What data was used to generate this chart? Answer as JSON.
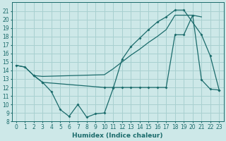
{
  "xlabel": "Humidex (Indice chaleur)",
  "bg_color": "#cde8e8",
  "grid_color": "#a8d0d0",
  "line_color": "#1a6b6b",
  "ylim": [
    8,
    22
  ],
  "xlim": [
    -0.5,
    23.5
  ],
  "yticks": [
    8,
    9,
    10,
    11,
    12,
    13,
    14,
    15,
    16,
    17,
    18,
    19,
    20,
    21
  ],
  "xticks": [
    0,
    1,
    2,
    3,
    4,
    5,
    6,
    7,
    8,
    9,
    10,
    11,
    12,
    13,
    14,
    15,
    16,
    17,
    18,
    19,
    20,
    21,
    22,
    23
  ],
  "line1_x": [
    0,
    1,
    2,
    3,
    10,
    11,
    12,
    13,
    14,
    15,
    16,
    17,
    18,
    20,
    21
  ],
  "line1_y": [
    14.6,
    14.4,
    13.4,
    13.3,
    13.5,
    14.2,
    15.0,
    15.8,
    16.5,
    17.3,
    18.0,
    18.8,
    20.5,
    20.5,
    20.3
  ],
  "line2_x": [
    0,
    1,
    2,
    3,
    4,
    5,
    6,
    7,
    8,
    9,
    10,
    11,
    12,
    13,
    14,
    15,
    16,
    17,
    18,
    19,
    21,
    22,
    23
  ],
  "line2_y": [
    14.6,
    14.4,
    13.4,
    12.6,
    11.5,
    9.4,
    8.6,
    10.0,
    8.5,
    8.9,
    9.0,
    11.9,
    15.3,
    16.8,
    17.8,
    18.8,
    19.7,
    20.3,
    21.1,
    21.1,
    18.2,
    15.7,
    11.7
  ],
  "line3_x": [
    2,
    3,
    10,
    11,
    12,
    13,
    14,
    15,
    16,
    17,
    18,
    19,
    20,
    21,
    22,
    23
  ],
  "line3_y": [
    13.4,
    12.6,
    12.0,
    12.0,
    12.0,
    12.0,
    12.0,
    12.0,
    12.0,
    12.0,
    18.2,
    18.2,
    20.5,
    12.9,
    11.8,
    11.7
  ]
}
